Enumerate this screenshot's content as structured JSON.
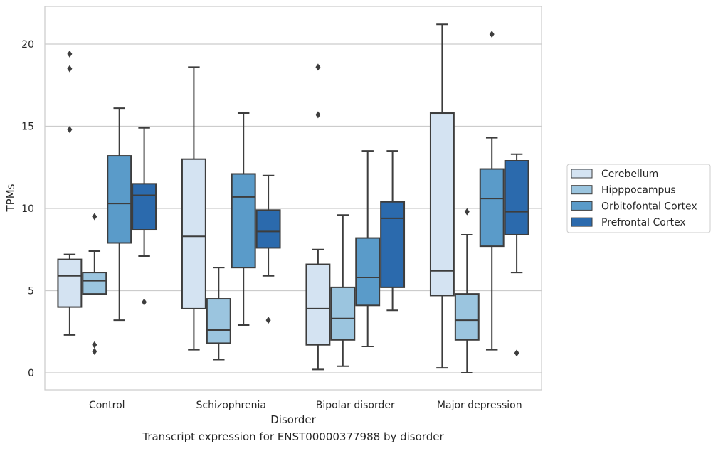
{
  "chart_data": {
    "type": "box",
    "xlabel": "Disorder",
    "ylabel": "TPMs",
    "caption": "Transcript expression for ENST00000377988 by disorder",
    "ylim": [
      -1,
      22
    ],
    "yticks": [
      0,
      5,
      10,
      15,
      20
    ],
    "grid": "horizontal",
    "legend_position": "right",
    "categories": [
      "Control",
      "Schizophrenia",
      "Bipolar disorder",
      "Major depression"
    ],
    "series": [
      {
        "name": "Cerebellum",
        "color": "#d4e3f2",
        "boxes": [
          {
            "whisker_low": 2.3,
            "q1": 4.0,
            "median": 5.9,
            "q3": 6.9,
            "whisker_high": 7.2,
            "outliers": [
              14.8,
              18.5,
              19.4
            ]
          },
          {
            "whisker_low": 1.4,
            "q1": 3.9,
            "median": 8.3,
            "q3": 13.0,
            "whisker_high": 18.6,
            "outliers": []
          },
          {
            "whisker_low": 0.2,
            "q1": 1.7,
            "median": 3.9,
            "q3": 6.6,
            "whisker_high": 7.5,
            "outliers": [
              15.7,
              18.6
            ]
          },
          {
            "whisker_low": 0.3,
            "q1": 4.7,
            "median": 6.2,
            "q3": 15.8,
            "whisker_high": 21.2,
            "outliers": []
          }
        ]
      },
      {
        "name": "Hipppocampus",
        "color": "#9bc5df",
        "boxes": [
          {
            "whisker_low": 4.8,
            "q1": 4.8,
            "median": 5.6,
            "q3": 6.1,
            "whisker_high": 7.4,
            "outliers": [
              1.3,
              1.7,
              9.5
            ]
          },
          {
            "whisker_low": 0.8,
            "q1": 1.8,
            "median": 2.6,
            "q3": 4.5,
            "whisker_high": 6.4,
            "outliers": []
          },
          {
            "whisker_low": 0.4,
            "q1": 2.0,
            "median": 3.3,
            "q3": 5.2,
            "whisker_high": 9.6,
            "outliers": []
          },
          {
            "whisker_low": 0.0,
            "q1": 2.0,
            "median": 3.2,
            "q3": 4.8,
            "whisker_high": 8.4,
            "outliers": [
              9.8
            ]
          }
        ]
      },
      {
        "name": "Orbitofontal Cortex",
        "color": "#5a9bc9",
        "boxes": [
          {
            "whisker_low": 3.2,
            "q1": 7.9,
            "median": 10.3,
            "q3": 13.2,
            "whisker_high": 16.1,
            "outliers": []
          },
          {
            "whisker_low": 2.9,
            "q1": 6.4,
            "median": 10.7,
            "q3": 12.1,
            "whisker_high": 15.8,
            "outliers": []
          },
          {
            "whisker_low": 1.6,
            "q1": 4.1,
            "median": 5.8,
            "q3": 8.2,
            "whisker_high": 13.5,
            "outliers": []
          },
          {
            "whisker_low": 1.4,
            "q1": 7.7,
            "median": 10.6,
            "q3": 12.4,
            "whisker_high": 14.3,
            "outliers": [
              20.6
            ]
          }
        ]
      },
      {
        "name": "Prefrontal Cortex",
        "color": "#2b6aad",
        "boxes": [
          {
            "whisker_low": 7.1,
            "q1": 8.7,
            "median": 10.8,
            "q3": 11.5,
            "whisker_high": 14.9,
            "outliers": [
              4.3
            ]
          },
          {
            "whisker_low": 5.9,
            "q1": 7.6,
            "median": 8.6,
            "q3": 9.9,
            "whisker_high": 12.0,
            "outliers": [
              3.2
            ]
          },
          {
            "whisker_low": 3.8,
            "q1": 5.2,
            "median": 9.4,
            "q3": 10.4,
            "whisker_high": 13.5,
            "outliers": []
          },
          {
            "whisker_low": 6.1,
            "q1": 8.4,
            "median": 9.8,
            "q3": 12.9,
            "whisker_high": 13.3,
            "outliers": [
              1.2
            ]
          }
        ]
      }
    ]
  }
}
